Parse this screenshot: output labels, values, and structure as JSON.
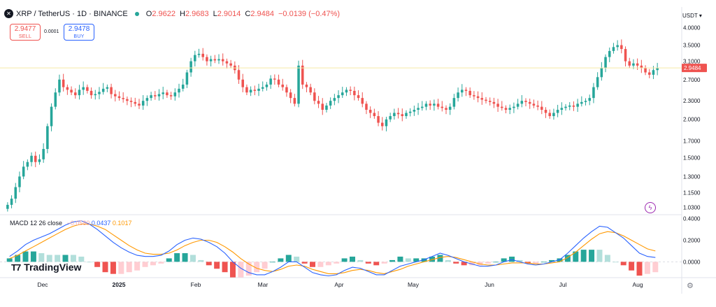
{
  "header": {
    "logo_icon": "xrp-logo-icon",
    "symbol_line": "XRP / TetherUS · 1D · BINANCE",
    "status_color": "#26a69a",
    "ohlc": [
      {
        "key": "O",
        "value": "2.9622"
      },
      {
        "key": "H",
        "value": "2.9683"
      },
      {
        "key": "L",
        "value": "2.9014"
      },
      {
        "key": "C",
        "value": "2.9484"
      }
    ],
    "change": "−0.0139 (−0.47%)"
  },
  "trade": {
    "sell_price": "2.9477",
    "sell_label": "SELL",
    "spread": "0.0001",
    "buy_price": "2.9478",
    "buy_label": "BUY"
  },
  "axis_unit": "USDT",
  "price_tag": "2.9484",
  "macd_legend": {
    "name": "MACD 12 26 close",
    "hist": "−0.0580",
    "macd": "0.0437",
    "signal": "0.1017"
  },
  "watermark": "TradingView",
  "colors": {
    "up": "#26a69a",
    "down": "#ef5350",
    "macd_line": "#2962ff",
    "signal_line": "#ff9800",
    "price_line": "#f5e9a8"
  },
  "chart_data": [
    {
      "type": "candlestick",
      "series": [
        {
          "name": "XRP / TetherUS",
          "close": [
            1.05,
            1.1,
            1.2,
            1.3,
            1.4,
            1.45,
            1.52,
            1.45,
            1.48,
            1.6,
            1.9,
            2.2,
            2.45,
            2.7,
            2.55,
            2.5,
            2.45,
            2.4,
            2.5,
            2.55,
            2.48,
            2.4,
            2.42,
            2.46,
            2.52,
            2.55,
            2.42,
            2.38,
            2.35,
            2.33,
            2.3,
            2.28,
            2.25,
            2.22,
            2.3,
            2.35,
            2.4,
            2.38,
            2.42,
            2.45,
            2.4,
            2.38,
            2.45,
            2.52,
            2.6,
            2.85,
            3.1,
            3.25,
            3.28,
            3.2,
            3.1,
            3.15,
            3.12,
            3.15,
            3.1,
            3.05,
            3.0,
            2.9,
            2.7,
            2.55,
            2.45,
            2.5,
            2.48,
            2.52,
            2.55,
            2.6,
            2.72,
            2.7,
            2.6,
            2.55,
            2.45,
            2.35,
            2.25,
            3.0,
            2.6,
            2.55,
            2.45,
            2.3,
            2.25,
            2.15,
            2.22,
            2.3,
            2.35,
            2.4,
            2.45,
            2.5,
            2.48,
            2.4,
            2.35,
            2.25,
            2.15,
            2.1,
            2.05,
            1.95,
            1.9,
            2.0,
            2.05,
            2.1,
            2.08,
            2.05,
            2.1,
            2.12,
            2.15,
            2.18,
            2.2,
            2.25,
            2.22,
            2.25,
            2.2,
            2.18,
            2.15,
            2.2,
            2.35,
            2.45,
            2.5,
            2.48,
            2.4,
            2.38,
            2.35,
            2.32,
            2.3,
            2.28,
            2.25,
            2.2,
            2.18,
            2.15,
            2.18,
            2.2,
            2.25,
            2.3,
            2.28,
            2.25,
            2.22,
            2.2,
            2.15,
            2.1,
            2.05,
            2.1,
            2.15,
            2.18,
            2.2,
            2.22,
            2.2,
            2.25,
            2.28,
            2.3,
            2.35,
            2.55,
            2.75,
            2.95,
            3.2,
            3.35,
            3.45,
            3.5,
            3.4,
            3.1,
            3.0,
            3.05,
            3.0,
            2.95,
            2.85,
            2.8,
            2.9,
            2.95
          ]
        }
      ],
      "y_ticks": [
        "4.0000",
        "3.5000",
        "3.1000",
        "2.7000",
        "2.3000",
        "2.0000",
        "1.7000",
        "1.5000",
        "1.3000",
        "1.1500",
        "1.0300"
      ],
      "x_ticks": [
        "Dec",
        "2025",
        "Feb",
        "Mar",
        "Apr",
        "May",
        "Jun",
        "Jul",
        "Aug"
      ],
      "y_scale": "log",
      "last_close": 2.9484
    },
    {
      "type": "line",
      "series": [
        {
          "name": "MACD",
          "values": [
            0.05,
            0.1,
            0.16,
            0.2,
            0.23,
            0.26,
            0.3,
            0.34,
            0.37,
            0.38,
            0.35,
            0.3,
            0.24,
            0.18,
            0.13,
            0.09,
            0.06,
            0.05,
            0.05,
            0.06,
            0.1,
            0.16,
            0.2,
            0.22,
            0.21,
            0.18,
            0.14,
            0.08,
            0.0,
            -0.06,
            -0.1,
            -0.12,
            -0.12,
            -0.09,
            -0.05,
            0.0,
            0.0,
            -0.05,
            -0.1,
            -0.12,
            -0.13,
            -0.12,
            -0.08,
            -0.05,
            -0.06,
            -0.09,
            -0.12,
            -0.12,
            -0.08,
            -0.04,
            -0.02,
            0.0,
            0.02,
            0.05,
            0.08,
            0.06,
            0.03,
            0.0,
            -0.02,
            -0.04,
            -0.04,
            -0.03,
            0.0,
            0.02,
            0.0,
            -0.02,
            -0.03,
            -0.02,
            0.0,
            0.02,
            0.08,
            0.15,
            0.22,
            0.28,
            0.33,
            0.32,
            0.27,
            0.22,
            0.15,
            0.08,
            0.05,
            0.04
          ]
        },
        {
          "name": "Signal",
          "values": [
            0.03,
            0.06,
            0.1,
            0.14,
            0.18,
            0.22,
            0.26,
            0.3,
            0.33,
            0.35,
            0.35,
            0.33,
            0.3,
            0.25,
            0.2,
            0.15,
            0.11,
            0.08,
            0.07,
            0.07,
            0.08,
            0.11,
            0.15,
            0.18,
            0.2,
            0.2,
            0.18,
            0.14,
            0.09,
            0.03,
            -0.02,
            -0.06,
            -0.08,
            -0.09,
            -0.07,
            -0.04,
            -0.03,
            -0.04,
            -0.07,
            -0.09,
            -0.11,
            -0.11,
            -0.1,
            -0.08,
            -0.07,
            -0.08,
            -0.1,
            -0.11,
            -0.09,
            -0.07,
            -0.04,
            -0.02,
            0.0,
            0.02,
            0.04,
            0.05,
            0.04,
            0.02,
            0.0,
            -0.02,
            -0.03,
            -0.03,
            -0.02,
            -0.01,
            -0.01,
            -0.01,
            -0.02,
            -0.02,
            -0.01,
            0.0,
            0.04,
            0.09,
            0.15,
            0.21,
            0.26,
            0.28,
            0.27,
            0.24,
            0.2,
            0.16,
            0.12,
            0.1
          ]
        }
      ],
      "y_ticks": [
        "0.4000",
        "0.2000",
        "0.0000"
      ],
      "histogram": "difference MACD − signal"
    }
  ]
}
